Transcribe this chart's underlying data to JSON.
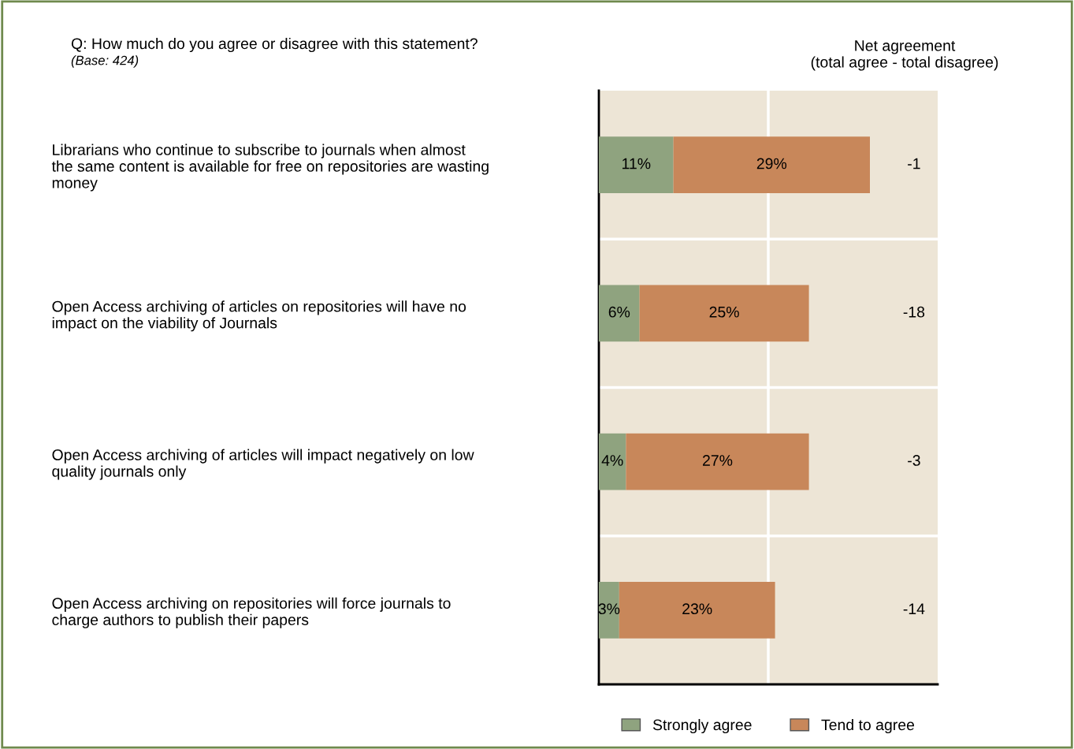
{
  "chart_data": {
    "type": "bar",
    "orientation": "horizontal",
    "stacked": true,
    "title": "Q: How much do you agree or disagree with this statement?",
    "subtitle": "(Base: 424)",
    "categories": [
      "Librarians who continue to subscribe to journals when almost\nthe same content is available for free on repositories are wasting\nmoney",
      "Open Access archiving of articles on repositories will have no\nimpact on the viability of Journals",
      "Open Access archiving of articles will impact negatively on low\nquality journals only",
      "Open Access archiving on repositories will force journals to\ncharge authors to publish their papers"
    ],
    "series": [
      {
        "name": "Strongly agree",
        "color": "#8fa37f",
        "values": [
          11,
          6,
          4,
          3
        ],
        "value_labels": [
          "11%",
          "6%",
          "4%",
          "3%"
        ]
      },
      {
        "name": "Tend to agree",
        "color": "#c8875a",
        "values": [
          29,
          25,
          27,
          23
        ],
        "value_labels": [
          "29%",
          "25%",
          "27%",
          "23%"
        ]
      }
    ],
    "xlim": [
      0,
      50
    ],
    "ref_lines": [
      {
        "axis": "x",
        "value": 25,
        "color": "#ffffff"
      }
    ],
    "tick_labels": "y",
    "legend": "bottom",
    "annotations": [
      "Net agreement\n(total agree - total disagree)",
      "-1",
      "-18",
      "-3",
      "-14"
    ]
  }
}
